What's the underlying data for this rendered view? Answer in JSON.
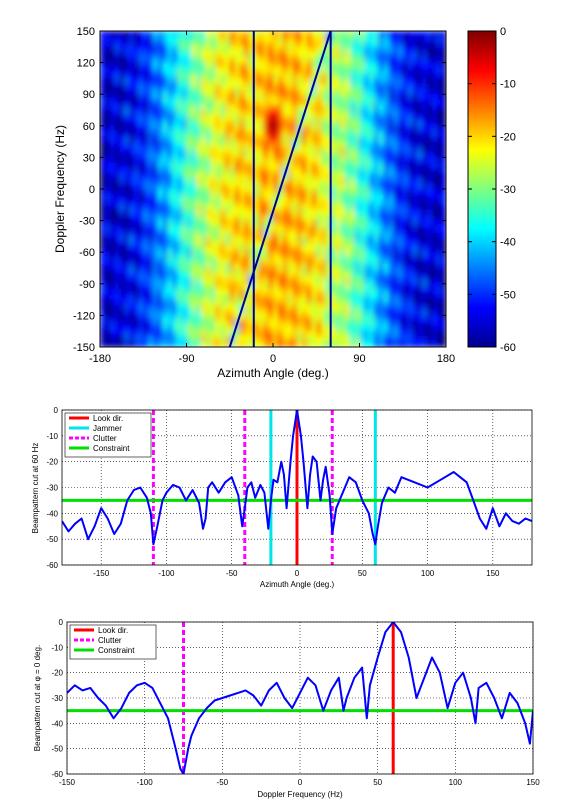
{
  "chart_data": [
    {
      "type": "heatmap",
      "title": "",
      "xlabel": "Azimuth Angle (deg.)",
      "ylabel": "Doppler Frequency (Hz)",
      "xlim": [
        -180,
        180
      ],
      "ylim": [
        -150,
        150
      ],
      "xticks": [
        -180,
        -90,
        0,
        90,
        180
      ],
      "yticks": [
        150,
        120,
        90,
        60,
        30,
        0,
        -30,
        -60,
        -90,
        -120,
        -150
      ],
      "colorbar": {
        "range": [
          -60,
          0
        ],
        "ticks": [
          0,
          -10,
          -20,
          -30,
          -40,
          -50,
          -60
        ],
        "colormap": "jet"
      },
      "peak": {
        "azimuth": 0,
        "doppler": 60,
        "value": 0
      },
      "clutter_ridge": {
        "points": [
          [
            -45,
            -150
          ],
          [
            60,
            150
          ]
        ]
      },
      "nulls_azimuth": [
        -20,
        60
      ]
    },
    {
      "type": "line",
      "xlabel": "Azimuth Angle (deg.)",
      "ylabel": "Beampattern cut at 60 Hz",
      "xlim": [
        -180,
        180
      ],
      "ylim": [
        -60,
        0
      ],
      "xticks": [
        -150,
        -100,
        -50,
        0,
        50,
        100,
        150
      ],
      "yticks": [
        0,
        -10,
        -20,
        -30,
        -40,
        -50,
        -60
      ],
      "grid": true,
      "legend": {
        "position": "top-left",
        "entries": [
          "Look dir.",
          "Jammer",
          "Clutter",
          "Constraint"
        ]
      },
      "markers": {
        "look_dir": [
          0
        ],
        "jammer": [
          -20,
          60
        ],
        "clutter": [
          -110,
          -40,
          27
        ],
        "constraint": -35
      },
      "series": [
        {
          "name": "",
          "x": [
            -180,
            -175,
            -170,
            -165,
            -160,
            -155,
            -150,
            -145,
            -140,
            -135,
            -130,
            -125,
            -120,
            -115,
            -112,
            -110,
            -107,
            -103,
            -100,
            -95,
            -90,
            -85,
            -80,
            -75,
            -72,
            -70,
            -68,
            -65,
            -60,
            -55,
            -50,
            -45,
            -42,
            -40,
            -38,
            -35,
            -32,
            -28,
            -25,
            -22,
            -20,
            -18,
            -15,
            -12,
            -10,
            -8,
            -5,
            -3,
            0,
            3,
            5,
            8,
            10,
            12,
            15,
            18,
            20,
            22,
            25,
            27,
            30,
            35,
            40,
            45,
            50,
            55,
            58,
            60,
            62,
            65,
            70,
            75,
            80,
            90,
            100,
            110,
            120,
            125,
            130,
            135,
            140,
            145,
            150,
            155,
            160,
            165,
            170,
            175,
            180
          ],
          "y": [
            -43,
            -47,
            -44,
            -42,
            -50,
            -45,
            -38,
            -42,
            -48,
            -44,
            -35,
            -31,
            -30,
            -34,
            -40,
            -52,
            -45,
            -35,
            -32,
            -29,
            -30,
            -35,
            -31,
            -36,
            -46,
            -42,
            -30,
            -28,
            -32,
            -28,
            -26,
            -33,
            -45,
            -38,
            -30,
            -28,
            -34,
            -29,
            -32,
            -46,
            -35,
            -27,
            -28,
            -20,
            -25,
            -38,
            -20,
            -10,
            0,
            -10,
            -20,
            -38,
            -25,
            -18,
            -20,
            -35,
            -27,
            -22,
            -33,
            -48,
            -38,
            -32,
            -26,
            -28,
            -35,
            -40,
            -48,
            -52,
            -45,
            -36,
            -30,
            -32,
            -26,
            -28,
            -30,
            -27,
            -24,
            -26,
            -28,
            -35,
            -42,
            -46,
            -38,
            -45,
            -40,
            -43,
            -44,
            -42,
            -43
          ]
        }
      ]
    },
    {
      "type": "line",
      "xlabel": "Doppler Frequency (Hz)",
      "ylabel": "Beampattern cut at φ = 0 deg.",
      "xlim": [
        -150,
        150
      ],
      "ylim": [
        -60,
        0
      ],
      "xticks": [
        -150,
        -100,
        -50,
        0,
        50,
        100,
        150
      ],
      "yticks": [
        0,
        -10,
        -20,
        -30,
        -40,
        -50,
        -60
      ],
      "grid": true,
      "legend": {
        "position": "top-left",
        "entries": [
          "Look dir.",
          "Clutter",
          "Constraint"
        ]
      },
      "markers": {
        "look_dir": [
          60
        ],
        "clutter": [
          -75
        ],
        "constraint": -35
      },
      "series": [
        {
          "name": "",
          "x": [
            -150,
            -145,
            -140,
            -135,
            -130,
            -125,
            -120,
            -115,
            -110,
            -105,
            -100,
            -95,
            -90,
            -85,
            -80,
            -77,
            -75,
            -72,
            -70,
            -65,
            -60,
            -55,
            -50,
            -45,
            -40,
            -35,
            -30,
            -25,
            -20,
            -15,
            -10,
            -5,
            0,
            5,
            10,
            15,
            20,
            25,
            28,
            30,
            35,
            40,
            43,
            45,
            50,
            55,
            60,
            65,
            70,
            75,
            80,
            85,
            90,
            95,
            100,
            105,
            110,
            113,
            115,
            120,
            125,
            130,
            135,
            140,
            145,
            148,
            150
          ],
          "y": [
            -28,
            -25,
            -27,
            -26,
            -30,
            -33,
            -38,
            -34,
            -28,
            -25,
            -24,
            -26,
            -32,
            -38,
            -50,
            -58,
            -60,
            -50,
            -45,
            -38,
            -34,
            -31,
            -30,
            -29,
            -28,
            -27,
            -29,
            -33,
            -27,
            -24,
            -30,
            -34,
            -28,
            -22,
            -25,
            -35,
            -27,
            -22,
            -35,
            -30,
            -22,
            -18,
            -38,
            -25,
            -14,
            -4,
            0,
            -4,
            -14,
            -30,
            -22,
            -14,
            -20,
            -34,
            -24,
            -20,
            -30,
            -40,
            -26,
            -24,
            -30,
            -38,
            -28,
            -32,
            -40,
            -48,
            -35
          ]
        }
      ]
    }
  ],
  "colors": {
    "curve": "#0000ff",
    "look_dir": "#ff0000",
    "jammer": "#00e5e5",
    "clutter": "#ff00ff",
    "constraint": "#00e000"
  }
}
